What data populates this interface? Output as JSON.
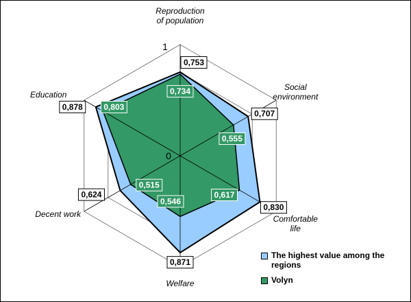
{
  "chart_data": {
    "type": "radar",
    "axes": [
      {
        "label_lines": [
          "Reproduction",
          "of population"
        ]
      },
      {
        "label_lines": [
          "Social",
          "environment"
        ]
      },
      {
        "label_lines": [
          "Comfortable",
          "life"
        ]
      },
      {
        "label_lines": [
          "Welfare"
        ]
      },
      {
        "label_lines": [
          "Decent work"
        ]
      },
      {
        "label_lines": [
          "Education"
        ]
      }
    ],
    "scale": {
      "min": 0,
      "max": 1,
      "min_label": "0",
      "max_label": "1"
    },
    "series": [
      {
        "name": "The highest value among the regions",
        "color": "#99ccff",
        "values": [
          0.753,
          0.707,
          0.83,
          0.871,
          0.624,
          0.878
        ],
        "labels": [
          "0,753",
          "0,707",
          "0,830",
          "0,871",
          "0,624",
          "0,878"
        ]
      },
      {
        "name": "Volyn",
        "color": "#339966",
        "values": [
          0.734,
          0.555,
          0.617,
          0.546,
          0.515,
          0.803
        ],
        "labels": [
          "0,734",
          "0,555",
          "0,617",
          "0,546",
          "0,515",
          "0,803"
        ]
      }
    ],
    "gridlines": true,
    "legend_position": "bottom-right"
  }
}
